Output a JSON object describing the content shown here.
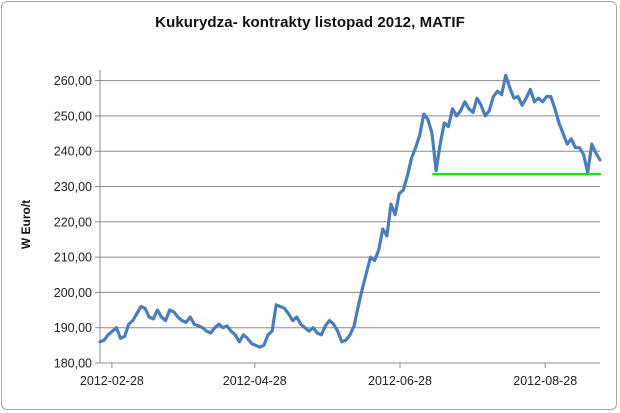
{
  "chart_data": {
    "type": "line",
    "title": "Kukurydza- kontrakty listopad 2012, MATIF",
    "xlabel": "",
    "ylabel": "W Euro/t",
    "x_tick_labels": [
      "2012-02-28",
      "2012-04-28",
      "2012-06-28",
      "2012-08-28"
    ],
    "y_tick_labels": [
      "180,00",
      "190,00",
      "200,00",
      "210,00",
      "220,00",
      "230,00",
      "240,00",
      "250,00",
      "260,00"
    ],
    "ylim": [
      180,
      263
    ],
    "y_ticks": [
      180,
      190,
      200,
      210,
      220,
      230,
      240,
      250,
      260
    ],
    "grid": "horizontal",
    "legend": "none",
    "series": [
      {
        "color": "#4a7ebb",
        "values": [
          186,
          186.5,
          188,
          189,
          190,
          187,
          187.5,
          191,
          192,
          194,
          196,
          195.5,
          193,
          192.5,
          195,
          193,
          192,
          195,
          194.5,
          193,
          192,
          191.5,
          193,
          191,
          190.5,
          190,
          189,
          188.5,
          190,
          191,
          190,
          190.5,
          189,
          188,
          186,
          188,
          187,
          185.5,
          185,
          184.5,
          185,
          188,
          189,
          196.5,
          196,
          195.5,
          194,
          192,
          193,
          191,
          190,
          189,
          190,
          188.5,
          188,
          190.5,
          192,
          191,
          189,
          186,
          186.5,
          188,
          190.5,
          196,
          201,
          205.5,
          210,
          209,
          212,
          218,
          216,
          225,
          222,
          228,
          229,
          233,
          238,
          241,
          244.5,
          250.5,
          249,
          245,
          234.5,
          242,
          248,
          247,
          252,
          250,
          251.5,
          254,
          252,
          251,
          255,
          253,
          250,
          251.5,
          255.5,
          257,
          256,
          261.5,
          258,
          255,
          255.5,
          253,
          255,
          257.5,
          254,
          255,
          254,
          255.5,
          255.5,
          252,
          248,
          245,
          242,
          243.5,
          241,
          241,
          239,
          234,
          242,
          239.5,
          237.5
        ]
      },
      {
        "color": "#22dd22",
        "x_start": "2012-07-12",
        "values": [
          233.5,
          233.5
        ]
      }
    ],
    "x_start": "2012-02-23",
    "x_end": "2012-09-20"
  }
}
